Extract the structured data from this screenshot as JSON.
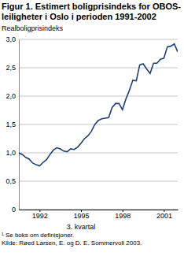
{
  "chart_data": {
    "type": "line",
    "title": "Figur 1. Estimert boligprisindeks for OBOS-leiligheter i Oslo i perioden 1991-2002",
    "y_label": "Realboligprisindeks",
    "x_label": "3. kvartal",
    "footnote": "¹ Se boks om definisjoner.",
    "source": "Kilde: Røed Larsen, E. og D. E. Sommervoll 2003.",
    "x": [
      1991,
      1991.25,
      1991.5,
      1991.75,
      1992,
      1992.25,
      1992.5,
      1992.75,
      1993,
      1993.25,
      1993.5,
      1993.75,
      1994,
      1994.25,
      1994.5,
      1994.75,
      1995,
      1995.25,
      1995.5,
      1995.75,
      1996,
      1996.25,
      1996.5,
      1996.75,
      1997,
      1997.25,
      1997.5,
      1997.75,
      1998,
      1998.25,
      1998.5,
      1998.75,
      1999,
      1999.25,
      1999.5,
      1999.75,
      2000,
      2000.25,
      2000.5,
      2000.75,
      2001,
      2001.25,
      2001.5,
      2001.75,
      2002,
      2002.25,
      2002.5
    ],
    "values": [
      1.0,
      0.97,
      0.92,
      0.89,
      0.82,
      0.79,
      0.77,
      0.83,
      0.88,
      0.97,
      1.05,
      1.09,
      1.07,
      1.03,
      1.02,
      1.07,
      1.06,
      1.1,
      1.17,
      1.25,
      1.3,
      1.38,
      1.5,
      1.57,
      1.6,
      1.61,
      1.62,
      1.8,
      1.87,
      1.87,
      1.76,
      1.95,
      2.1,
      2.28,
      2.27,
      2.55,
      2.57,
      2.48,
      2.4,
      2.58,
      2.58,
      2.65,
      2.67,
      2.87,
      2.88,
      2.92,
      2.78
    ],
    "color": "#1f3f7f",
    "xlim": [
      1991,
      2002.5
    ],
    "xticks": [
      {
        "value": 1992.5,
        "label": "1992"
      },
      {
        "value": 1995.5,
        "label": "1995"
      },
      {
        "value": 1998.5,
        "label": "1998"
      },
      {
        "value": 2001.5,
        "label": "2001"
      }
    ],
    "ylim": [
      0,
      3.0
    ],
    "yticks": [
      0,
      {
        "value": 0.5,
        "label": "0,5"
      },
      {
        "value": 1.0,
        "label": "1,0"
      },
      {
        "value": 1.5,
        "label": "1,5"
      },
      {
        "value": 2.0,
        "label": "2,0"
      },
      {
        "value": 2.5,
        "label": "2,5"
      },
      {
        "value": 3.0,
        "label": "3,0"
      }
    ],
    "grid": true
  }
}
